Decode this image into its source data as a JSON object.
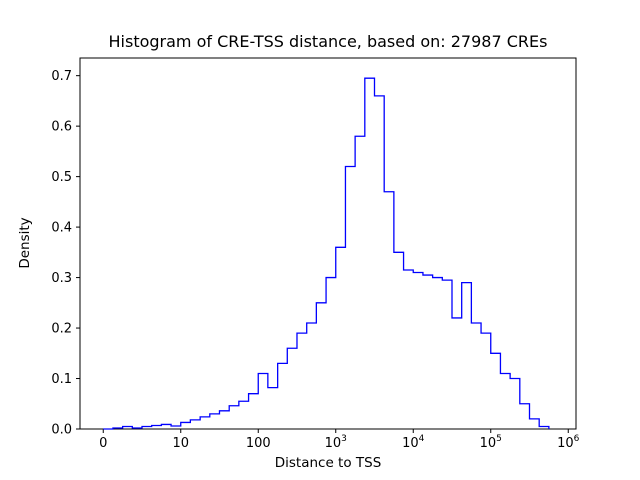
{
  "chart_data": {
    "type": "step-histogram",
    "title": "Histogram of CRE-TSS distance, based on: 27987 CREs",
    "xlabel": "Distance to TSS",
    "ylabel": "Density",
    "x_scale": "symlog",
    "symlog_linthresh": 10,
    "xlim_units": [
      -0.3,
      6.1
    ],
    "ylim": [
      0,
      0.735
    ],
    "line_color": "#0000ff",
    "grid": false,
    "legend": null,
    "x_ticks": [
      {
        "value": 0,
        "label": "0",
        "exp": ""
      },
      {
        "value": 10,
        "label": "10",
        "exp": ""
      },
      {
        "value": 100,
        "label": "100",
        "exp": ""
      },
      {
        "value": 1000,
        "label": "10",
        "exp": "3"
      },
      {
        "value": 10000,
        "label": "10",
        "exp": "4"
      },
      {
        "value": 100000,
        "label": "10",
        "exp": "5"
      },
      {
        "value": 1000000,
        "label": "10",
        "exp": "6"
      }
    ],
    "y_ticks": [
      0.0,
      0.1,
      0.2,
      0.3,
      0.4,
      0.5,
      0.6,
      0.7
    ],
    "bin_edges": [
      0,
      1.25,
      2.5,
      3.75,
      5,
      6.25,
      7.5,
      8.75,
      10,
      13.3,
      17.8,
      23.7,
      31.6,
      42.2,
      56.2,
      75,
      100,
      133,
      178,
      237,
      316,
      422,
      562,
      750,
      1000,
      1334,
      1778,
      2371,
      3162,
      4217,
      5623,
      7499,
      10000,
      13335,
      17783,
      23714,
      31623,
      42170,
      56234,
      74989,
      100000,
      133352,
      177828,
      237137,
      316228,
      421697,
      562341
    ],
    "densities": [
      0,
      0.002,
      0.005,
      0.002,
      0.005,
      0.007,
      0.009,
      0.006,
      0.013,
      0.018,
      0.024,
      0.03,
      0.036,
      0.046,
      0.055,
      0.07,
      0.11,
      0.082,
      0.13,
      0.16,
      0.19,
      0.21,
      0.25,
      0.3,
      0.36,
      0.52,
      0.58,
      0.695,
      0.66,
      0.47,
      0.35,
      0.315,
      0.31,
      0.305,
      0.3,
      0.295,
      0.22,
      0.29,
      0.21,
      0.19,
      0.15,
      0.11,
      0.1,
      0.05,
      0.02,
      0.005
    ]
  }
}
